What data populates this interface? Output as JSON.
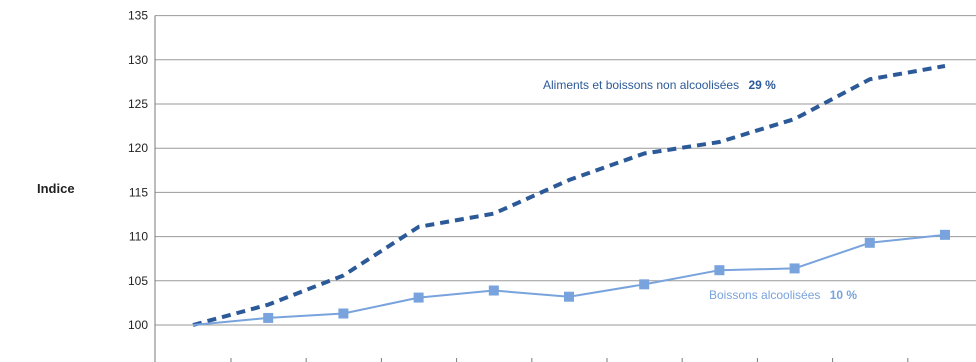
{
  "chart_data": {
    "type": "line",
    "ylabel": "Indice",
    "ylim": [
      98,
      135
    ],
    "yticks": [
      100,
      105,
      110,
      115,
      120,
      125,
      130,
      135
    ],
    "grid": true,
    "x_count": 11,
    "series": [
      {
        "name": "Aliments et boissons non alcoolisées",
        "share": "29 %",
        "style": "dashed",
        "color": "#2c5a99",
        "values": [
          100.0,
          102.3,
          105.6,
          111.1,
          112.6,
          116.4,
          119.4,
          120.7,
          123.3,
          127.8,
          129.3
        ]
      },
      {
        "name": "Boissons alcoolisées",
        "share": "10 %",
        "style": "solid-square-markers",
        "color": "#79a3dd",
        "values": [
          100.0,
          100.8,
          101.3,
          103.1,
          103.9,
          103.2,
          104.6,
          106.2,
          106.4,
          109.3,
          110.2
        ]
      }
    ]
  }
}
